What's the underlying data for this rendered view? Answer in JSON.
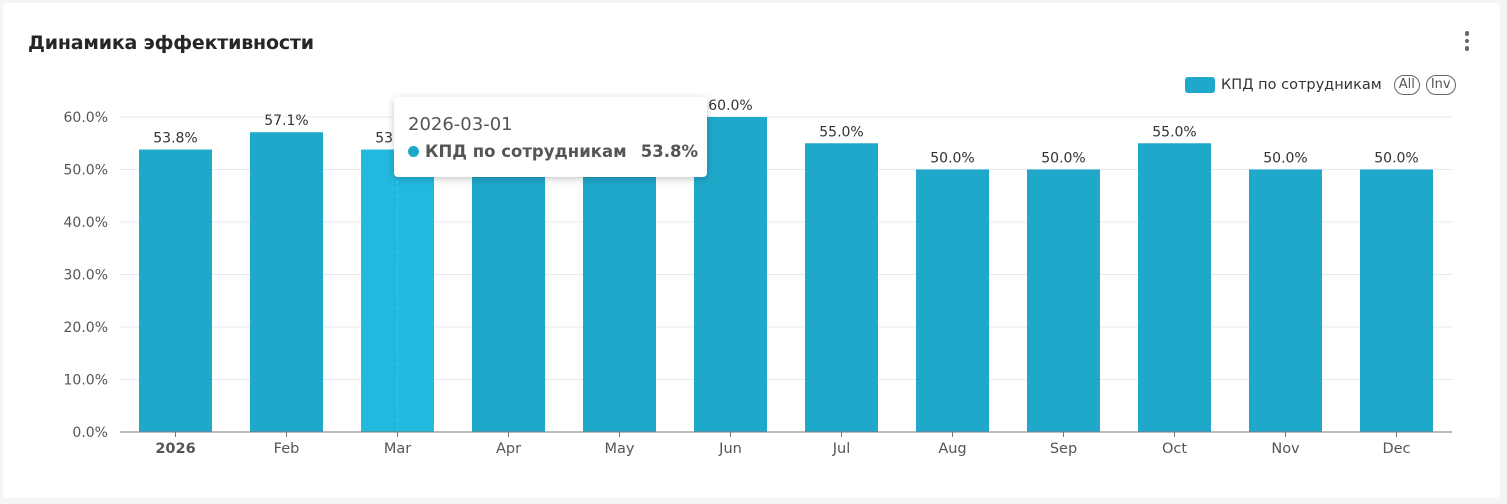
{
  "card": {
    "title": "Динамика эффективности"
  },
  "legend": {
    "series_label": "КПД по сотрудникам",
    "all_label": "All",
    "inv_label": "Inv"
  },
  "tooltip": {
    "date": "2026-03-01",
    "series": "КПД по сотрудникам",
    "value": "53.8%"
  },
  "colors": {
    "bar": "#20a8cb",
    "bar_highlight": "#22b9df",
    "grid": "#e6e9f0",
    "axis": "#7a7a7a"
  },
  "chart_data": {
    "type": "bar",
    "categories": [
      "2026",
      "Feb",
      "Mar",
      "Apr",
      "May",
      "Jun",
      "Jul",
      "Aug",
      "Sep",
      "Oct",
      "Nov",
      "Dec"
    ],
    "series": [
      {
        "name": "КПД по сотрудникам",
        "values": [
          53.8,
          57.1,
          53.8,
          53.8,
          53.8,
          60.0,
          55.0,
          50.0,
          50.0,
          55.0,
          50.0,
          50.0
        ]
      }
    ],
    "data_labels": [
      "53.8%",
      "57.1%",
      "53.8%",
      "",
      "",
      "60.0%",
      "55.0%",
      "50.0%",
      "50.0%",
      "55.0%",
      "50.0%",
      "50.0%"
    ],
    "y_ticks": [
      "0.0%",
      "10.0%",
      "20.0%",
      "30.0%",
      "40.0%",
      "50.0%",
      "60.0%"
    ],
    "ylim": [
      0,
      60
    ],
    "highlight_category": "Mar",
    "bold_category": "2026",
    "legend_position": "top-right",
    "grid": true
  }
}
